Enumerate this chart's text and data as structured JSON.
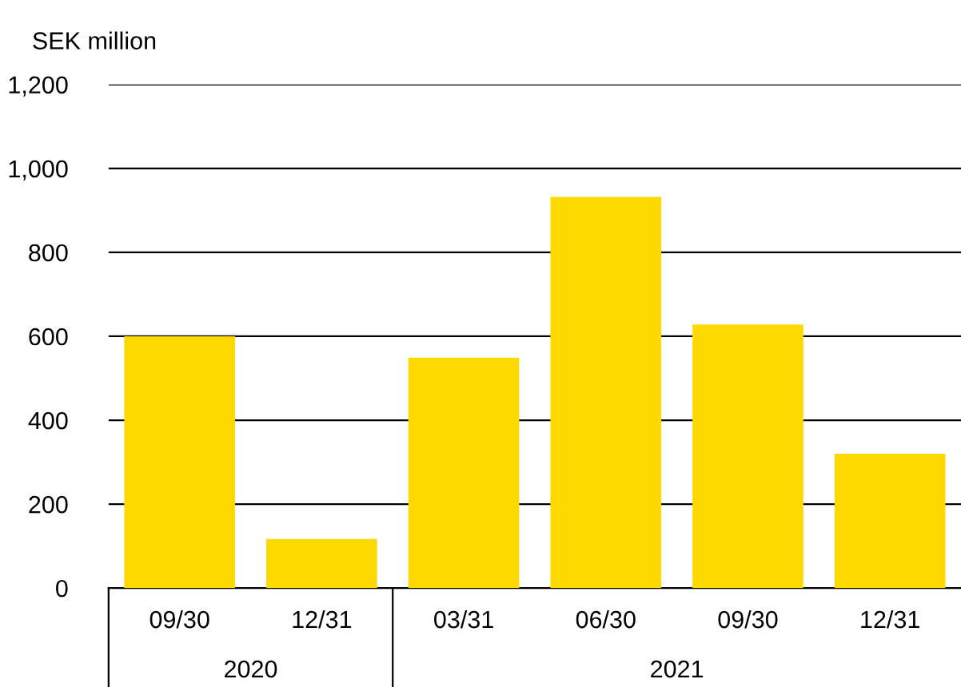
{
  "chart_data": {
    "type": "bar",
    "ylabel": "SEK million",
    "categories": [
      "09/30",
      "12/31",
      "03/31",
      "06/30",
      "09/30",
      "12/31"
    ],
    "values": [
      600,
      117,
      549,
      932,
      628,
      320
    ],
    "color": "#fdd900",
    "ylim": [
      0,
      1200
    ],
    "yticks": [
      0,
      {
        "value": 200,
        "label": "200"
      },
      {
        "value": 400,
        "label": "400"
      },
      {
        "value": 600,
        "label": "600"
      },
      {
        "value": 800,
        "label": "800"
      },
      {
        "value": 1000,
        "label": "1,000"
      },
      {
        "value": 1200,
        "label": "1,200"
      }
    ],
    "grid": "y",
    "annotations": [
      "2020",
      "2021"
    ]
  }
}
